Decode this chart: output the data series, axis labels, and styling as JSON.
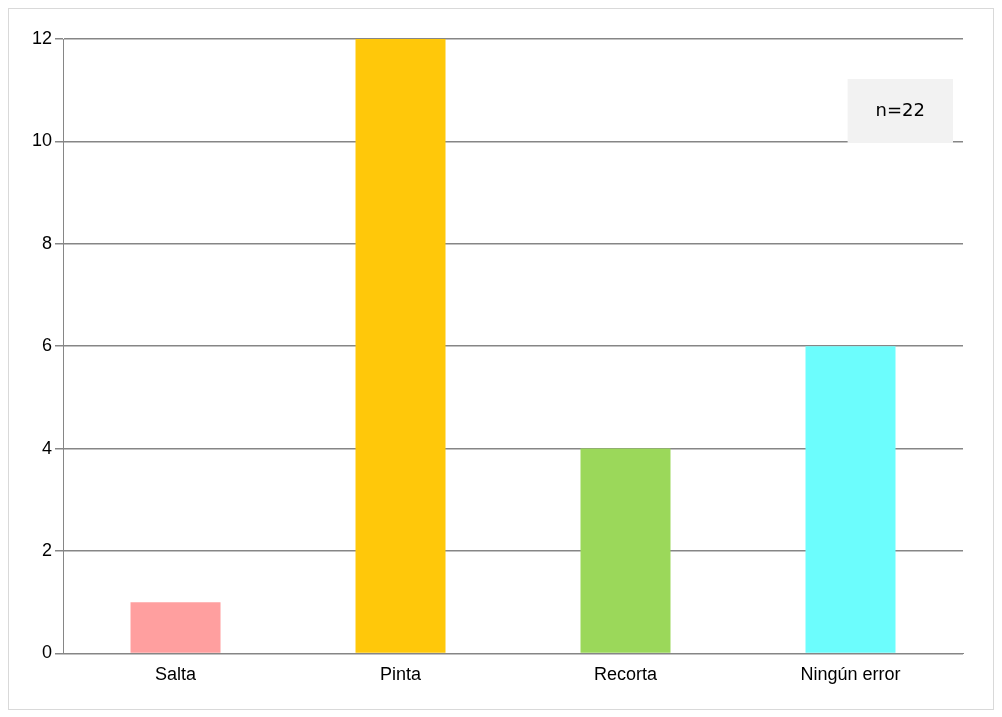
{
  "chart_data": {
    "type": "bar",
    "categories": [
      "Salta",
      "Pinta",
      "Recorta",
      "Ningún error"
    ],
    "values": [
      1,
      12,
      4,
      6
    ],
    "colors": [
      "#ff9f9f",
      "#ffc80a",
      "#9bd85a",
      "#6cfdfd"
    ],
    "ylim": [
      0,
      12
    ],
    "yticks": [
      0,
      2,
      4,
      6,
      8,
      10,
      12
    ],
    "grid": "y",
    "legend": false,
    "annotations": [
      "n=22"
    ]
  }
}
